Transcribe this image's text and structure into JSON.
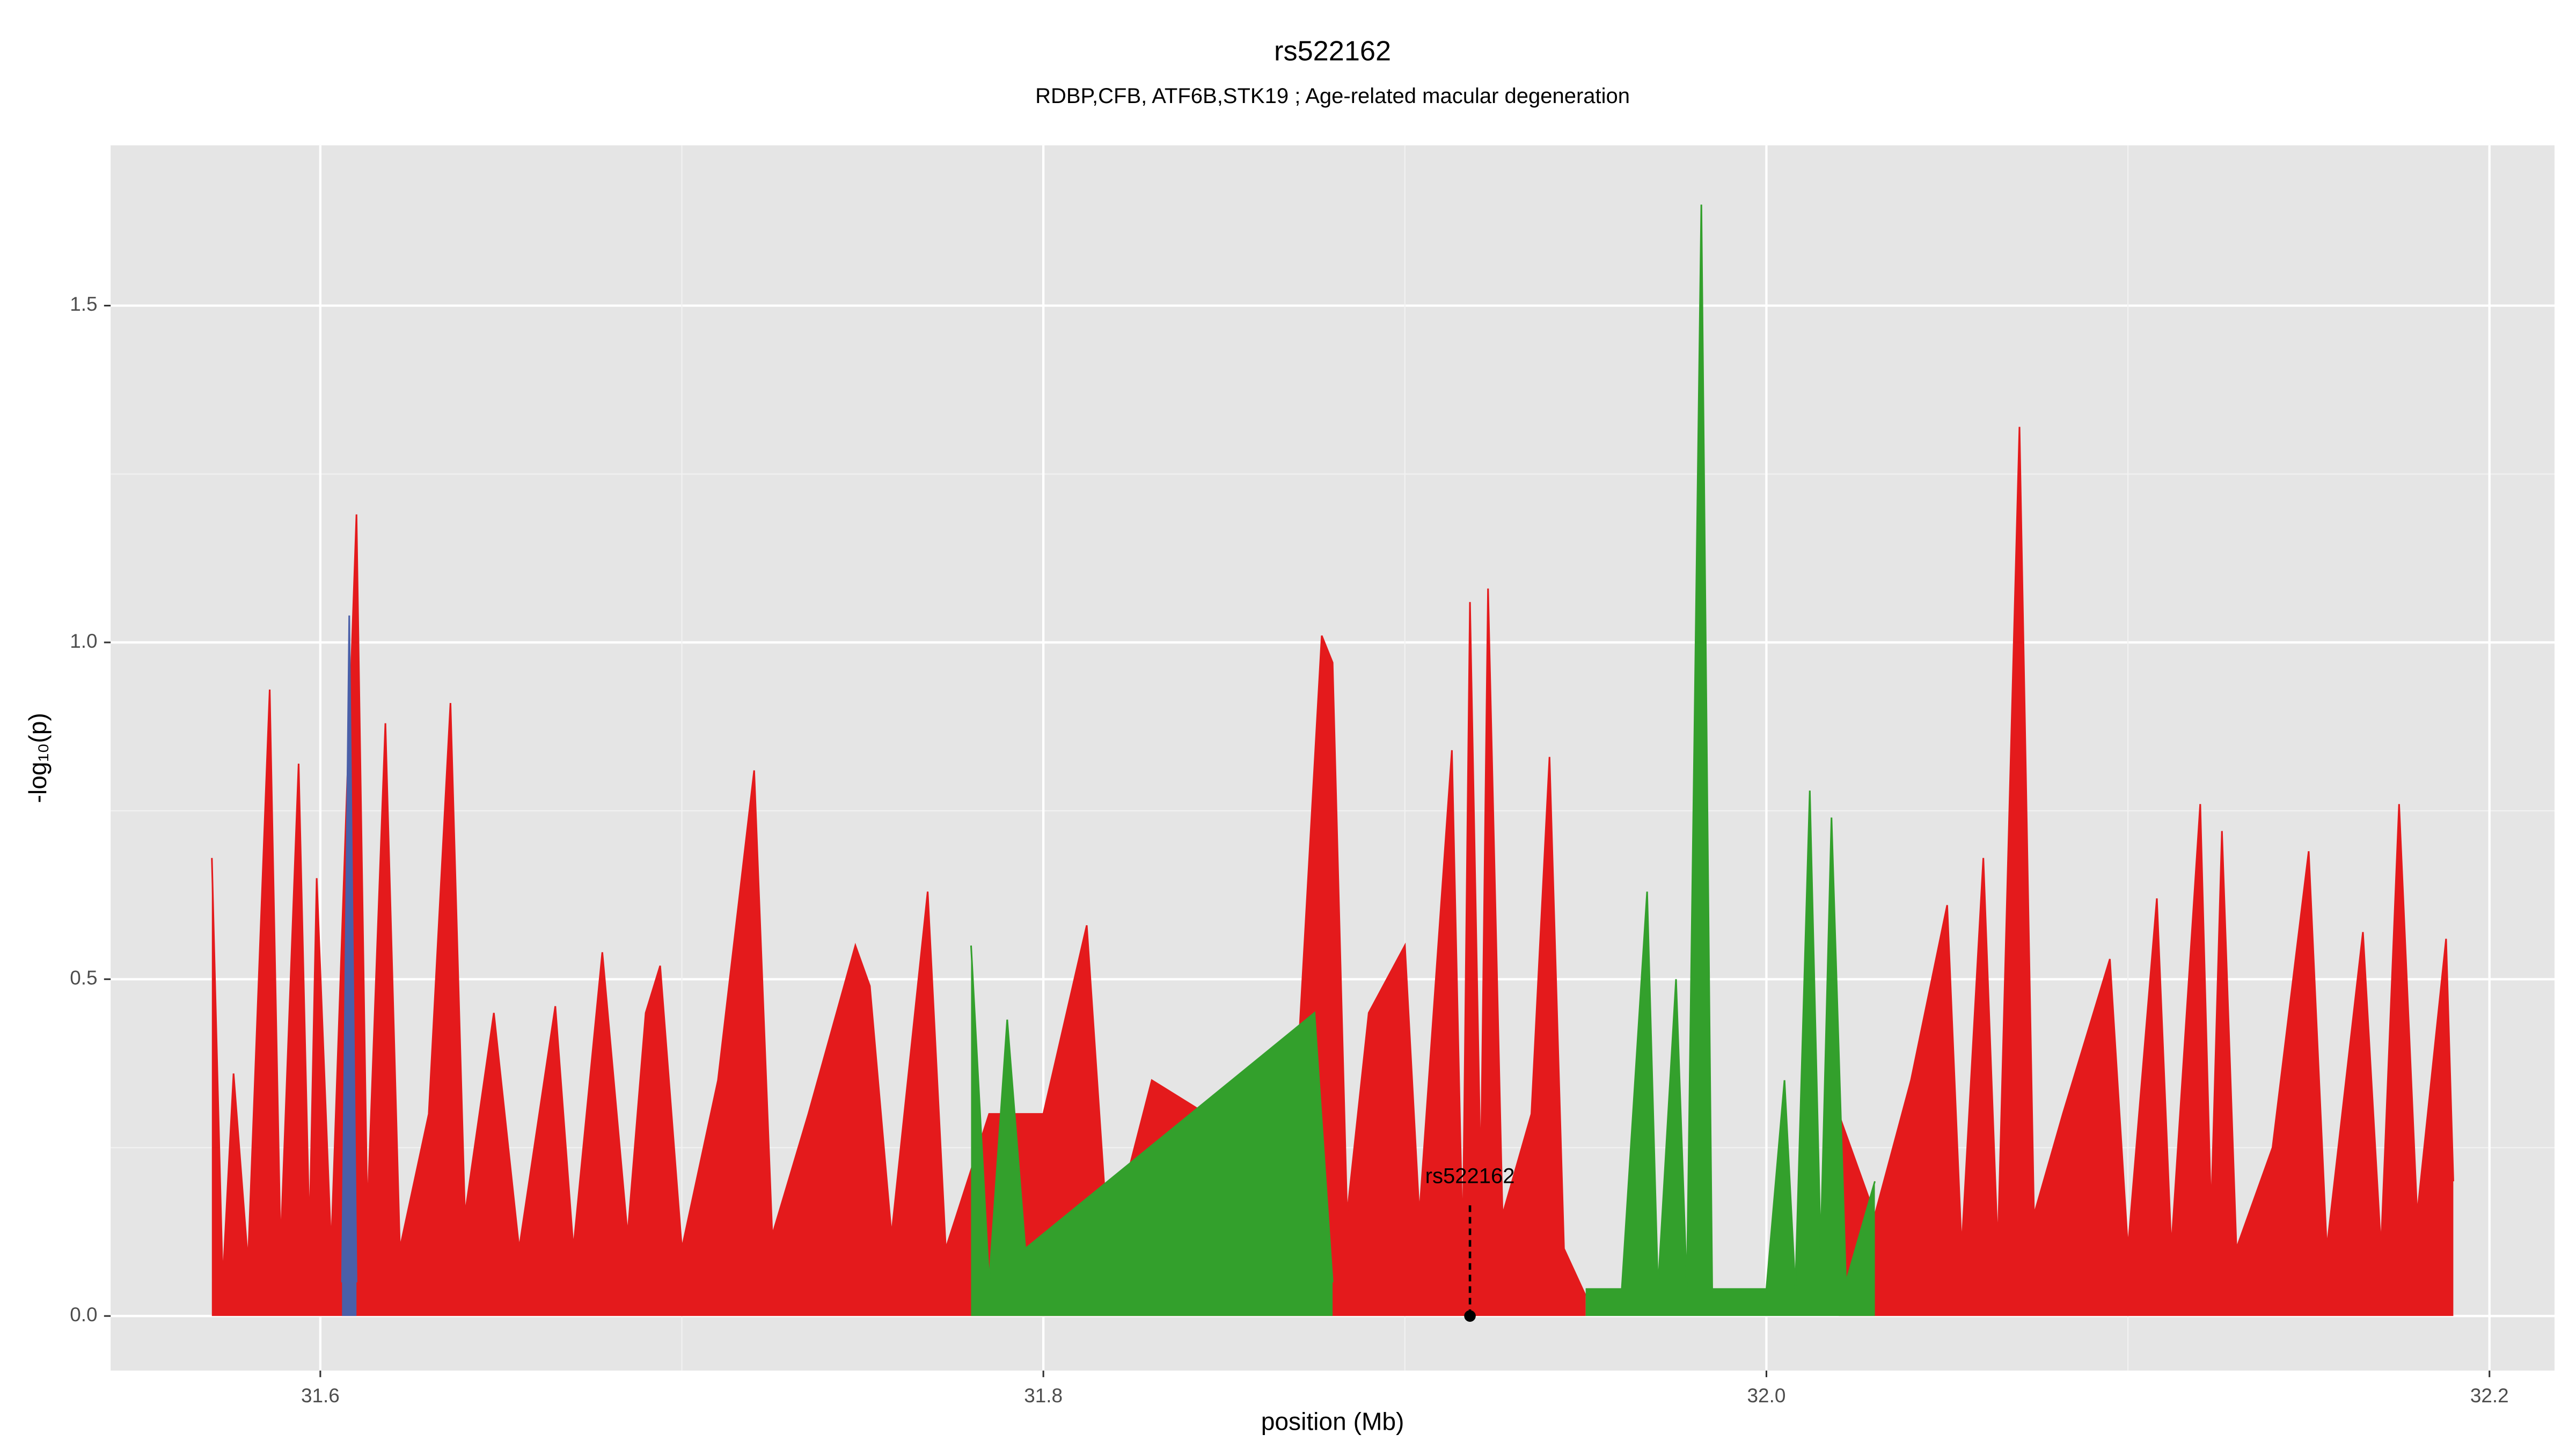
{
  "chart_data": {
    "type": "area",
    "title": "rs522162",
    "subtitle": "RDBP,CFB, ATF6B,STK19 ; Age-related macular degeneration",
    "x_label": "position (Mb)",
    "y_label": "-log₁₀(p)",
    "xlim": [
      31.542,
      32.218
    ],
    "ylim": [
      -0.081,
      1.738
    ],
    "xticks": [
      31.6,
      31.8,
      {
        "value": 32,
        "label": "32.0"
      },
      32.2
    ],
    "yticks": [
      {
        "value": 0,
        "label": "0.0"
      },
      0.5,
      {
        "value": 1,
        "label": "1.0"
      },
      1.5
    ],
    "grid": true,
    "series": [
      {
        "name": "red",
        "color": "#e41a1c",
        "x": [
          31.57,
          31.573,
          31.576,
          31.58,
          31.586,
          31.589,
          31.594,
          31.597,
          31.599,
          31.603,
          31.61,
          31.613,
          31.618,
          31.622,
          31.63,
          31.636,
          31.64,
          31.648,
          31.655,
          31.665,
          31.67,
          31.678,
          31.685,
          31.69,
          31.694,
          31.7,
          31.71,
          31.72,
          31.725,
          31.735,
          31.748,
          31.752,
          31.758,
          31.768,
          31.773,
          31.785,
          31.8,
          31.812,
          31.818,
          31.83,
          31.845,
          31.86,
          31.868,
          31.877,
          31.88,
          31.884,
          31.89,
          31.9,
          31.904,
          31.913,
          31.916,
          31.918,
          31.921,
          31.923,
          31.927,
          31.935,
          31.94,
          31.944,
          31.95,
          31.985,
          32.02,
          32.03,
          32.04,
          32.05,
          32.054,
          32.06,
          32.064,
          32.07,
          32.074,
          32.082,
          32.095,
          32.1,
          32.108,
          32.112,
          32.12,
          32.123,
          32.126,
          32.13,
          32.14,
          32.15,
          32.155,
          32.165,
          32.17,
          32.175,
          32.18,
          32.188,
          32.19
        ],
        "values": [
          0.68,
          0.05,
          0.36,
          0.08,
          0.93,
          0.1,
          0.82,
          0.12,
          0.65,
          0.1,
          1.19,
          0.15,
          0.88,
          0.1,
          0.3,
          0.91,
          0.15,
          0.45,
          0.1,
          0.46,
          0.1,
          0.54,
          0.12,
          0.45,
          0.52,
          0.1,
          0.35,
          0.81,
          0.12,
          0.3,
          0.55,
          0.49,
          0.12,
          0.63,
          0.1,
          0.3,
          0.3,
          0.58,
          0.1,
          0.35,
          0.3,
          0.3,
          0.15,
          1.01,
          0.97,
          0.15,
          0.45,
          0.55,
          0.15,
          0.84,
          0.1,
          1.06,
          0.2,
          1.08,
          0.15,
          0.3,
          0.83,
          0.1,
          0.03,
          null,
          0.3,
          0.15,
          0.35,
          0.61,
          0.1,
          0.68,
          0.1,
          1.32,
          0.15,
          0.3,
          0.53,
          0.1,
          0.62,
          0.1,
          0.76,
          0.15,
          0.72,
          0.1,
          0.25,
          0.69,
          0.1,
          0.57,
          0.1,
          0.76,
          0.15,
          0.56,
          0.2
        ]
      },
      {
        "name": "green",
        "color": "#33a02c",
        "x": [
          31.78,
          31.785,
          31.79,
          31.795,
          31.875,
          31.88,
          31.885,
          31.95,
          31.96,
          31.967,
          31.97,
          31.975,
          31.978,
          31.98,
          31.982,
          31.985,
          32.0,
          32.005,
          32.008,
          32.012,
          32.015,
          32.018,
          32.022,
          32.03
        ],
        "values": [
          0.55,
          0.05,
          0.44,
          0.1,
          0.45,
          0.05,
          null,
          0.04,
          0.04,
          0.63,
          0.04,
          0.5,
          0.04,
          0.83,
          1.65,
          0.04,
          0.04,
          0.35,
          0.04,
          0.78,
          0.1,
          0.74,
          0.05,
          0.2
        ]
      },
      {
        "name": "blue",
        "color": "#4a5fa8",
        "x": [
          31.606,
          31.608,
          31.61
        ],
        "values": [
          0.05,
          1.04,
          0.05
        ]
      }
    ],
    "annotation": {
      "text": "rs522162",
      "x": 31.918,
      "y": 0
    }
  }
}
